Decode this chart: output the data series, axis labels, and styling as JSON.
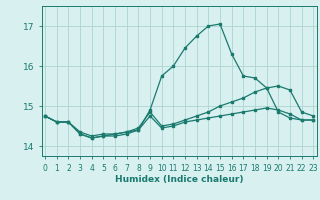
{
  "xlabel": "Humidex (Indice chaleur)",
  "line_color": "#1a7a6e",
  "bg_color": "#d8f0f0",
  "grid_color": "#aed4d0",
  "axis_color": "#1a7a6e",
  "ylim": [
    13.75,
    17.5
  ],
  "yticks": [
    14,
    15,
    16,
    17
  ],
  "xlim": [
    -0.3,
    23.3
  ],
  "xticks": [
    0,
    1,
    2,
    3,
    4,
    5,
    6,
    7,
    8,
    9,
    10,
    11,
    12,
    13,
    14,
    15,
    16,
    17,
    18,
    19,
    20,
    21,
    22,
    23
  ],
  "x_values": [
    0,
    1,
    2,
    3,
    4,
    5,
    6,
    7,
    8,
    9,
    10,
    11,
    12,
    13,
    14,
    15,
    16,
    17,
    18,
    19,
    20,
    21,
    22,
    23
  ],
  "line_upper": [
    14.75,
    14.6,
    14.6,
    14.3,
    14.2,
    14.25,
    14.3,
    14.35,
    14.4,
    14.9,
    15.75,
    16.0,
    16.45,
    16.75,
    17.0,
    17.05,
    16.3,
    15.75,
    15.7,
    15.45,
    14.85,
    14.7,
    14.65,
    14.65
  ],
  "line_mid": [
    14.75,
    14.6,
    14.6,
    14.35,
    14.25,
    14.3,
    14.3,
    14.35,
    14.45,
    14.85,
    14.5,
    14.55,
    14.65,
    14.75,
    14.85,
    15.0,
    15.1,
    15.2,
    15.35,
    15.45,
    15.5,
    15.4,
    14.85,
    14.75
  ],
  "line_lower": [
    14.75,
    14.6,
    14.6,
    14.3,
    14.2,
    14.25,
    14.25,
    14.3,
    14.4,
    14.75,
    14.45,
    14.5,
    14.6,
    14.65,
    14.7,
    14.75,
    14.8,
    14.85,
    14.9,
    14.95,
    14.9,
    14.8,
    14.65,
    14.65
  ]
}
